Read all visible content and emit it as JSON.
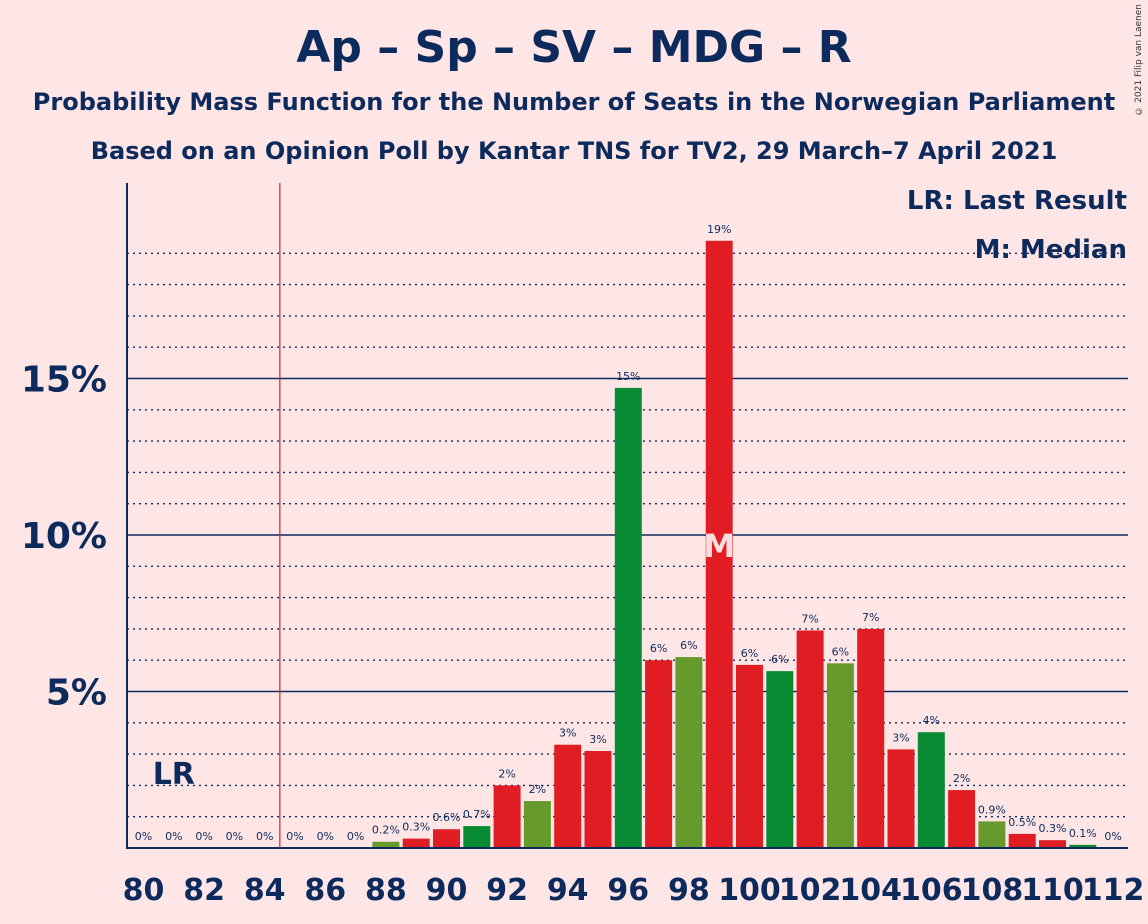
{
  "title": "Ap – Sp – SV – MDG – R",
  "subtitle1": "Probability Mass Function for the Number of Seats in the Norwegian Parliament",
  "subtitle2": "Based on an Opinion Poll by Kantar TNS for TV2, 29 March–7 April 2021",
  "copyright": "© 2021 Filip van Laenen",
  "legend": {
    "lr": "LR: Last Result",
    "m": "M: Median"
  },
  "markers": {
    "lr_label": "LR",
    "m_label": "M",
    "last_result_seat": 84.5,
    "median_seat": 99
  },
  "colors": {
    "red": "#e11d24",
    "green": "#098b33",
    "olive": "#679a2d",
    "navy": "#0d2a5c",
    "background": "#ffe6e6",
    "lr_line": "#e11d24"
  },
  "chart_data": {
    "type": "bar",
    "x": [
      80,
      81,
      82,
      83,
      84,
      85,
      86,
      87,
      88,
      89,
      90,
      91,
      92,
      93,
      94,
      95,
      96,
      97,
      98,
      99,
      100,
      101,
      102,
      103,
      104,
      105,
      106,
      107,
      108,
      109,
      110,
      111,
      112
    ],
    "values": [
      0,
      0,
      0,
      0,
      0,
      0,
      0,
      0,
      0.2,
      0.3,
      0.6,
      0.7,
      2,
      1.5,
      3.3,
      3.1,
      14.7,
      6,
      6.1,
      19.4,
      5.85,
      5.65,
      6.95,
      5.9,
      7,
      3.15,
      3.7,
      1.85,
      0.85,
      0.45,
      0.25,
      0.1,
      0
    ],
    "labels": [
      "0%",
      "0%",
      "0%",
      "0%",
      "0%",
      "0%",
      "0%",
      "0%",
      "0.2%",
      "0.3%",
      "0.6%",
      "0.7%",
      "2%",
      "2%",
      "3%",
      "3%",
      "15%",
      "6%",
      "6%",
      "19%",
      "6%",
      "6%",
      "7%",
      "6%",
      "7%",
      "3%",
      "4%",
      "2%",
      "0.9%",
      "0.5%",
      "0.3%",
      "0.1%",
      "0%"
    ],
    "bar_colors": [
      "red",
      "green",
      "olive",
      "red",
      "green",
      "olive",
      "red",
      "green",
      "olive",
      "red",
      "red",
      "green",
      "red",
      "olive",
      "red",
      "red",
      "green",
      "red",
      "olive",
      "red",
      "red",
      "green",
      "red",
      "olive",
      "red",
      "red",
      "green",
      "red",
      "olive",
      "red",
      "red",
      "green",
      "red"
    ],
    "xticks": [
      80,
      82,
      84,
      86,
      88,
      90,
      92,
      94,
      96,
      98,
      100,
      102,
      104,
      106,
      108,
      110,
      112
    ],
    "xtick_labels": [
      "80",
      "82",
      "84",
      "86",
      "88",
      "90",
      "92",
      "94",
      "96",
      "98",
      "100",
      "102",
      "104",
      "106",
      "108",
      "110",
      "112"
    ],
    "yticks": [
      5,
      10,
      15
    ],
    "ytick_labels": [
      "5%",
      "10%",
      "15%"
    ],
    "ylim": [
      0,
      20.5
    ],
    "grid": "dotted-minor-every-1pct, solid-major-every-5pct",
    "legend_position": "top-right"
  }
}
